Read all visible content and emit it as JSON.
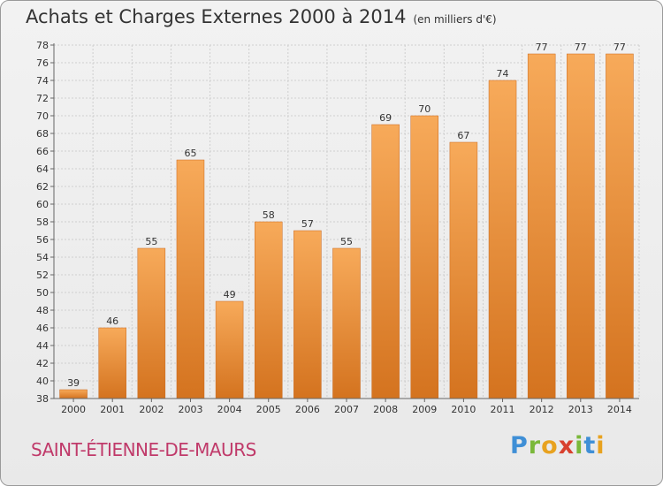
{
  "title": "Achats et Charges Externes 2000 à 2014",
  "unit_note": "(en milliers d'€)",
  "place": "SAINT-ÉTIENNE-DE-MAURS",
  "brand": {
    "letters": [
      "P",
      "r",
      "o",
      "x",
      "i",
      "t",
      "i"
    ],
    "colors": [
      "#3f8fd6",
      "#7ab83a",
      "#e8a21f",
      "#d8402e",
      "#7ab83a",
      "#3f8fd6",
      "#e8a21f"
    ]
  },
  "colors": {
    "bar_light": "#f7aa5a",
    "bar_dark": "#d4731f",
    "grid": "#cfcfcf",
    "text": "#333333"
  },
  "chart_data": {
    "type": "bar",
    "categories": [
      "2000",
      "2001",
      "2002",
      "2003",
      "2004",
      "2005",
      "2006",
      "2007",
      "2008",
      "2009",
      "2010",
      "2011",
      "2012",
      "2013",
      "2014"
    ],
    "values": [
      39,
      46,
      55,
      65,
      49,
      58,
      57,
      55,
      69,
      70,
      67,
      74,
      77,
      77,
      77
    ],
    "yticks": [
      38,
      40,
      42,
      44,
      46,
      48,
      50,
      52,
      54,
      56,
      58,
      60,
      62,
      64,
      66,
      68,
      70,
      72,
      74,
      76,
      78
    ],
    "ylim": [
      38,
      78
    ],
    "grid": true,
    "xlabel": "",
    "ylabel": ""
  }
}
